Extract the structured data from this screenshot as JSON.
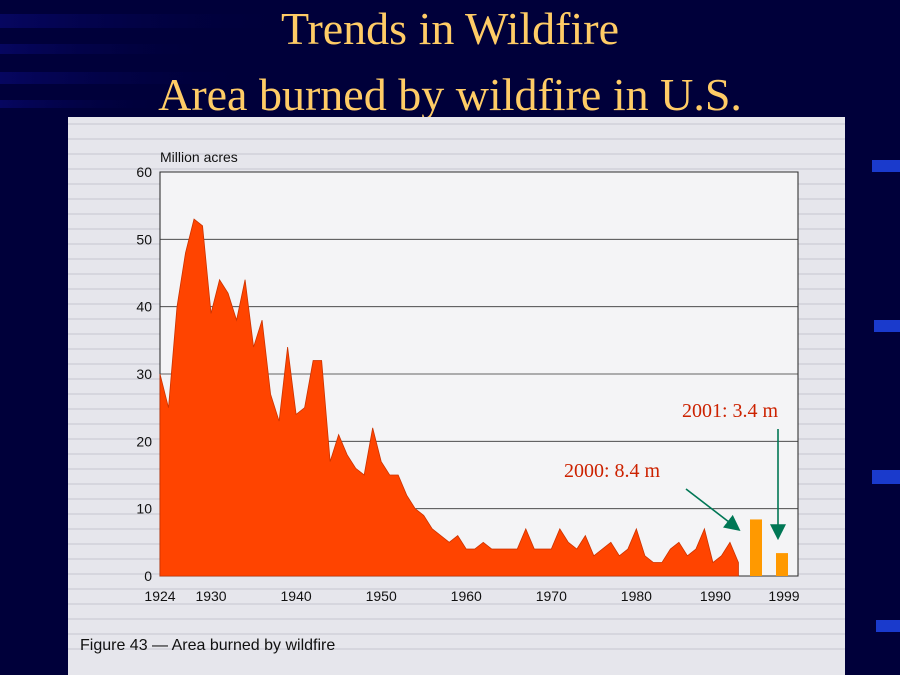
{
  "slide": {
    "title_line_1": "Trends in Wildfire",
    "title_line_2": "Area burned by wildfire in U.S.",
    "title_color": "#ffcc66",
    "background_color": "#00003a"
  },
  "figure": {
    "caption": "Figure 43 — Area burned by wildfire"
  },
  "annotations": [
    {
      "label": "2000: 8.4 m",
      "year": 2000,
      "value": 8.4,
      "color": "#cc2200"
    },
    {
      "label": "2001: 3.4 m",
      "year": 2001,
      "value": 3.4,
      "color": "#cc2200"
    }
  ],
  "chart_data": {
    "type": "area",
    "title": "Figure 43 — Area burned by wildfire",
    "ylabel": "Million acres",
    "xlabel": "",
    "ylim": [
      0,
      60
    ],
    "yticks": [
      0,
      10,
      20,
      30,
      40,
      50,
      60
    ],
    "xtick_labels": [
      "1924",
      "1930",
      "1940",
      "1950",
      "1960",
      "1970",
      "1980",
      "1990",
      "1999"
    ],
    "grid": "horizontal",
    "area_color": "#ff4400",
    "series": [
      {
        "x": [
          1924,
          1925,
          1926,
          1927,
          1928,
          1929,
          1930,
          1931,
          1932,
          1933,
          1934,
          1935,
          1936,
          1937,
          1938,
          1939,
          1940,
          1941,
          1942,
          1943,
          1944,
          1945,
          1946,
          1947,
          1948,
          1949,
          1950,
          1951,
          1952,
          1953,
          1954,
          1955,
          1956,
          1957,
          1958,
          1959,
          1960,
          1961,
          1962,
          1963,
          1964,
          1965,
          1966,
          1967,
          1968,
          1969,
          1970,
          1971,
          1972,
          1973,
          1974,
          1975,
          1976,
          1977,
          1978,
          1979,
          1980,
          1981,
          1982,
          1983,
          1984,
          1985,
          1986,
          1987,
          1988,
          1989,
          1990,
          1991,
          1992
        ],
        "values": [
          30,
          25,
          40,
          48,
          53,
          52,
          39,
          44,
          42,
          38,
          44,
          34,
          38,
          27,
          23,
          34,
          24,
          25,
          32,
          32,
          17,
          21,
          18,
          16,
          15,
          22,
          17,
          15,
          15,
          12,
          10,
          9,
          7,
          6,
          5,
          6,
          4,
          4,
          5,
          4,
          4,
          4,
          4,
          7,
          4,
          4,
          4,
          7,
          5,
          4,
          6,
          3,
          4,
          5,
          3,
          4,
          7,
          3,
          2,
          2,
          4,
          5,
          3,
          4,
          7,
          2,
          3,
          5,
          2
        ]
      },
      {
        "type": "bar",
        "categories": [
          "2000",
          "2001"
        ],
        "values": [
          8.4,
          3.4
        ],
        "color": "#ff9900"
      }
    ]
  }
}
